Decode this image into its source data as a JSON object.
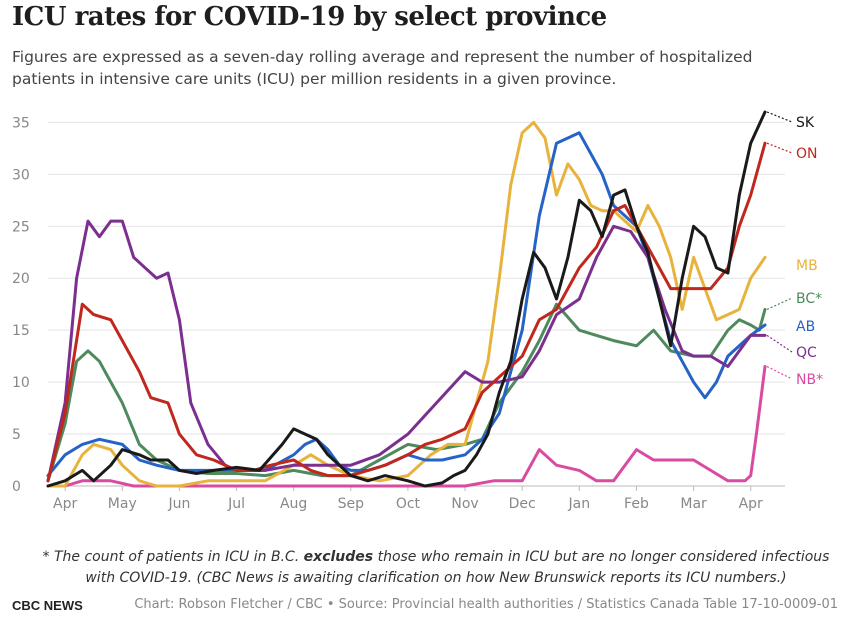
{
  "title": "ICU rates for COVID-19 by select province",
  "subtitle": "Figures are expressed as a seven-day rolling average and represent the number of hospitalized patients in intensive care units (ICU) per million residents in a given province.",
  "footnote": {
    "line1_pre": "* The count of patients in ICU in B.C. ",
    "line1_bold": "excludes",
    "line1_post": " those who remain in ICU but are no longer considered infectious",
    "line2": "with COVID-19. (CBC News is awaiting clarification on how New Brunswick reports its ICU numbers.)"
  },
  "brand": "CBC NEWS",
  "credit": "Chart: Robson Fletcher / CBC • Source: Provincial health authorities / Statistics Canada Table 17-10-0009-01",
  "chart_data": {
    "type": "line",
    "x_months": [
      "Apr",
      "May",
      "Jun",
      "Jul",
      "Aug",
      "Sep",
      "Oct",
      "Nov",
      "Dec",
      "Jan",
      "Feb",
      "Mar",
      "Apr"
    ],
    "x_note": "x values are months elapsed since 1 April 2020 (0 = Apr 2020, 12 = Apr 2021)",
    "ylim": [
      0,
      36
    ],
    "yticks": [
      0,
      5,
      10,
      15,
      20,
      25,
      30,
      35
    ],
    "grid": true,
    "legend": "end-of-line labels",
    "series": [
      {
        "name": "SK",
        "color": "#1a1a1a",
        "x": [
          -0.3,
          0,
          0.3,
          0.5,
          0.8,
          1,
          1.3,
          1.5,
          1.8,
          2,
          2.3,
          2.6,
          3,
          3.4,
          3.8,
          4,
          4.2,
          4.4,
          4.6,
          4.8,
          5,
          5.3,
          5.6,
          6,
          6.3,
          6.6,
          6.8,
          7,
          7.2,
          7.4,
          7.6,
          7.8,
          8,
          8.2,
          8.4,
          8.6,
          8.8,
          9,
          9.2,
          9.4,
          9.6,
          9.8,
          10,
          10.2,
          10.4,
          10.6,
          10.8,
          11,
          11.2,
          11.4,
          11.6,
          11.8,
          12,
          12.25
        ],
        "y": [
          0,
          0.5,
          1.5,
          0.5,
          2,
          3.5,
          3,
          2.5,
          2.5,
          1.5,
          1.2,
          1.5,
          1.8,
          1.5,
          4,
          5.5,
          5,
          4.5,
          3,
          2,
          1,
          0.5,
          1,
          0.5,
          0,
          0.3,
          1,
          1.5,
          3,
          5,
          9,
          12,
          18,
          22.5,
          21,
          18,
          22,
          27.5,
          26.5,
          24,
          28,
          28.5,
          25,
          22.5,
          18,
          13.5,
          20,
          25,
          24,
          21,
          20.5,
          28,
          33,
          36
        ]
      },
      {
        "name": "ON",
        "color": "#c0271d",
        "x": [
          -0.3,
          0,
          0.3,
          0.5,
          0.8,
          1,
          1.3,
          1.5,
          1.8,
          2,
          2.3,
          2.6,
          3,
          3.3,
          3.6,
          4,
          4.3,
          4.6,
          5,
          5.3,
          5.6,
          6,
          6.3,
          6.6,
          7,
          7.3,
          7.6,
          8,
          8.3,
          8.6,
          9,
          9.3,
          9.6,
          9.8,
          10,
          10.3,
          10.6,
          11,
          11.3,
          11.6,
          11.8,
          12,
          12.25
        ],
        "y": [
          0.5,
          7,
          17.5,
          16.5,
          16,
          14,
          11,
          8.5,
          8,
          5,
          3,
          2.5,
          1.5,
          1.5,
          2,
          2.5,
          1.5,
          1,
          1,
          1.5,
          2,
          3,
          4,
          4.5,
          5.5,
          9,
          10.5,
          12.5,
          16,
          17,
          21,
          23,
          26.5,
          27,
          25,
          22,
          19,
          19,
          19,
          21,
          25,
          28,
          33
        ]
      },
      {
        "name": "MB",
        "color": "#e8b33c",
        "x": [
          -0.3,
          0,
          0.3,
          0.5,
          0.8,
          1,
          1.3,
          1.6,
          2,
          2.5,
          3,
          3.5,
          4,
          4.3,
          4.6,
          5,
          5.5,
          6,
          6.4,
          6.7,
          7,
          7.2,
          7.4,
          7.6,
          7.8,
          8,
          8.2,
          8.4,
          8.6,
          8.8,
          9,
          9.2,
          9.4,
          9.6,
          9.8,
          10,
          10.2,
          10.4,
          10.6,
          10.8,
          11,
          11.2,
          11.4,
          11.6,
          11.8,
          12,
          12.25
        ],
        "y": [
          0,
          0,
          3,
          4,
          3.5,
          2,
          0.5,
          0,
          0,
          0.5,
          0.5,
          0.5,
          2,
          3,
          2,
          1,
          0.5,
          1,
          3,
          4,
          4,
          8,
          12,
          20,
          29,
          34,
          35,
          33.5,
          28,
          31,
          29.5,
          27,
          26.5,
          26.5,
          25.5,
          24.5,
          27,
          25,
          22,
          17,
          22,
          19,
          16,
          16.5,
          17,
          20,
          22
        ]
      },
      {
        "name": "BC*",
        "color": "#4e8a5c",
        "x": [
          -0.3,
          0,
          0.2,
          0.4,
          0.6,
          0.8,
          1,
          1.3,
          1.6,
          2,
          2.5,
          3,
          3.5,
          4,
          4.5,
          5,
          5.5,
          6,
          6.5,
          7,
          7.3,
          7.6,
          8,
          8.3,
          8.6,
          9,
          9.3,
          9.6,
          10,
          10.3,
          10.6,
          11,
          11.3,
          11.6,
          11.8,
          12,
          12.15,
          12.25
        ],
        "y": [
          0.5,
          6,
          12,
          13,
          12,
          10,
          8,
          4,
          2.5,
          1.5,
          1.2,
          1.2,
          1,
          1.5,
          1,
          1,
          2.5,
          4,
          3.5,
          4,
          4.5,
          8,
          11,
          14,
          17.5,
          15,
          14.5,
          14,
          13.5,
          15,
          13,
          12.5,
          12.5,
          15,
          16,
          15.5,
          15,
          17
        ]
      },
      {
        "name": "AB",
        "color": "#2563c6",
        "x": [
          -0.3,
          0,
          0.3,
          0.6,
          1,
          1.3,
          1.6,
          2,
          2.5,
          3,
          3.5,
          4,
          4.2,
          4.4,
          4.6,
          4.8,
          5,
          5.3,
          5.6,
          6,
          6.3,
          6.6,
          7,
          7.3,
          7.6,
          8,
          8.3,
          8.6,
          8.8,
          9,
          9.2,
          9.4,
          9.6,
          9.8,
          10,
          10.2,
          10.4,
          10.6,
          10.8,
          11,
          11.2,
          11.4,
          11.6,
          11.8,
          12,
          12.25
        ],
        "y": [
          1,
          3,
          4,
          4.5,
          4,
          2.5,
          2,
          1.5,
          1.5,
          1.5,
          1.5,
          3,
          4,
          4.5,
          3.5,
          2,
          1.5,
          1.5,
          2,
          3,
          2.5,
          2.5,
          3,
          4.5,
          7,
          15,
          26,
          33,
          33.5,
          34,
          32,
          30,
          27,
          26,
          25,
          22,
          18,
          14,
          12,
          10,
          8.5,
          10,
          12.5,
          13.5,
          14.5,
          15.5
        ]
      },
      {
        "name": "QC",
        "color": "#7b2f8e",
        "x": [
          -0.3,
          0,
          0.2,
          0.4,
          0.6,
          0.8,
          1,
          1.2,
          1.4,
          1.6,
          1.8,
          2,
          2.2,
          2.5,
          2.8,
          3,
          3.5,
          4,
          4.5,
          5,
          5.5,
          6,
          6.5,
          7,
          7.3,
          7.6,
          8,
          8.3,
          8.6,
          9,
          9.3,
          9.6,
          9.9,
          10.2,
          10.5,
          10.8,
          11,
          11.3,
          11.6,
          11.8,
          12,
          12.25
        ],
        "y": [
          0.5,
          8,
          20,
          25.5,
          24,
          25.5,
          25.5,
          22,
          21,
          20,
          20.5,
          16,
          8,
          4,
          2,
          1.5,
          1.5,
          2,
          2,
          2,
          3,
          5,
          8,
          11,
          10,
          10,
          10.5,
          13,
          16.5,
          18,
          22,
          25,
          24.5,
          22,
          17,
          13,
          12.5,
          12.5,
          11.5,
          13,
          14.5,
          14.5
        ]
      },
      {
        "name": "NB*",
        "color": "#d94ba0",
        "x": [
          -0.3,
          0,
          0.3,
          0.5,
          0.8,
          1.2,
          1.5,
          2,
          3,
          4,
          5,
          6,
          6.5,
          7,
          7.5,
          8,
          8.3,
          8.6,
          9,
          9.3,
          9.6,
          10,
          10.3,
          10.6,
          11,
          11.3,
          11.6,
          11.9,
          12,
          12.1,
          12.25
        ],
        "y": [
          0,
          0,
          0.5,
          0.5,
          0.5,
          0,
          0,
          0,
          0,
          0,
          0,
          0,
          0,
          0,
          0.5,
          0.5,
          3.5,
          2,
          1.5,
          0.5,
          0.5,
          3.5,
          2.5,
          2.5,
          2.5,
          1.5,
          0.5,
          0.5,
          1,
          5,
          11.5
        ]
      }
    ],
    "labels_order_note": "End-of-line labels: SK, ON, MB, BC*, AB, QC, NB*"
  }
}
